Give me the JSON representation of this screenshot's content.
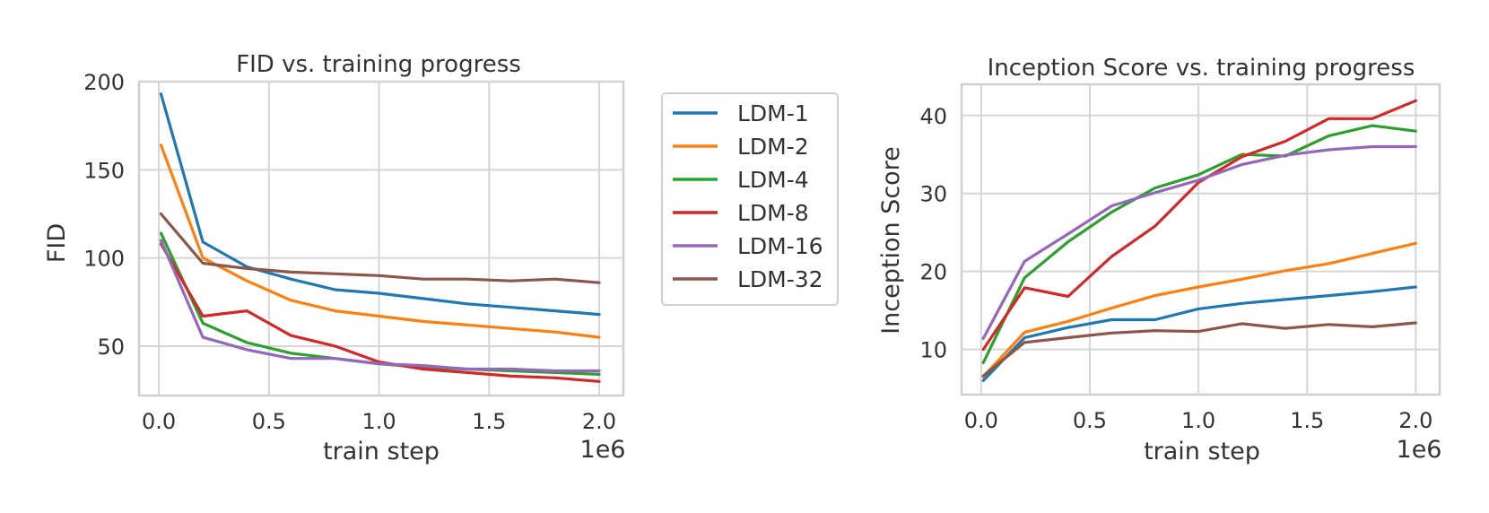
{
  "colors": {
    "LDM-1": "#1f77b4",
    "LDM-2": "#ff7f0e",
    "LDM-4": "#2ca02c",
    "LDM-8": "#d62728",
    "LDM-16": "#9467bd",
    "LDM-32": "#8c564b"
  },
  "legend": {
    "entries": [
      "LDM-1",
      "LDM-2",
      "LDM-4",
      "LDM-8",
      "LDM-16",
      "LDM-32"
    ]
  },
  "chart_data": [
    {
      "type": "line",
      "title": "FID vs. training progress",
      "xlabel": "train step",
      "ylabel": "FID",
      "x_offset_label": "1e6",
      "xlim": [
        -0.09,
        2.11
      ],
      "ylim": [
        22,
        200
      ],
      "xticks": [
        0.0,
        0.5,
        1.0,
        1.5,
        2.0
      ],
      "xtick_labels": [
        "0.0",
        "0.5",
        "1.0",
        "1.5",
        "2.0"
      ],
      "yticks": [
        50,
        100,
        150,
        200
      ],
      "ytick_labels": [
        "50",
        "100",
        "150",
        "200"
      ],
      "grid": true,
      "x": [
        0.01,
        0.2,
        0.4,
        0.6,
        0.8,
        1.0,
        1.2,
        1.4,
        1.6,
        1.8,
        2.0
      ],
      "series": [
        {
          "name": "LDM-1",
          "values": [
            193,
            109,
            95,
            88,
            82,
            80,
            77,
            74,
            72,
            70,
            68
          ]
        },
        {
          "name": "LDM-2",
          "values": [
            164,
            100,
            87,
            76,
            70,
            67,
            64,
            62,
            60,
            58,
            55
          ]
        },
        {
          "name": "LDM-4",
          "values": [
            114,
            63,
            52,
            46,
            43,
            40,
            38,
            37,
            36,
            35,
            34
          ]
        },
        {
          "name": "LDM-8",
          "values": [
            108,
            67,
            70,
            56,
            50,
            41,
            37,
            35,
            33,
            32,
            30
          ]
        },
        {
          "name": "LDM-16",
          "values": [
            110,
            55,
            48,
            43,
            43,
            40,
            39,
            37,
            37,
            36,
            36
          ]
        },
        {
          "name": "LDM-32",
          "values": [
            125,
            97,
            94,
            92,
            91,
            90,
            88,
            88,
            87,
            88,
            86
          ]
        }
      ]
    },
    {
      "type": "line",
      "title": "Inception Score vs. training progress",
      "xlabel": "train step",
      "ylabel": "Inception Score",
      "x_offset_label": "1e6",
      "xlim": [
        -0.09,
        2.11
      ],
      "ylim": [
        4.2,
        44
      ],
      "xticks": [
        0.0,
        0.5,
        1.0,
        1.5,
        2.0
      ],
      "xtick_labels": [
        "0.0",
        "0.5",
        "1.0",
        "1.5",
        "2.0"
      ],
      "yticks": [
        10,
        20,
        30,
        40
      ],
      "ytick_labels": [
        "10",
        "20",
        "30",
        "40"
      ],
      "grid": true,
      "x": [
        0.01,
        0.2,
        0.4,
        0.6,
        0.8,
        1.0,
        1.2,
        1.4,
        1.6,
        1.8,
        2.0
      ],
      "series": [
        {
          "name": "LDM-1",
          "values": [
            6.0,
            11.5,
            12.8,
            13.8,
            13.8,
            15.2,
            15.9,
            16.4,
            16.9,
            17.4,
            18.0
          ]
        },
        {
          "name": "LDM-2",
          "values": [
            6.5,
            12.2,
            13.6,
            15.3,
            16.9,
            18.0,
            19.0,
            20.1,
            21.0,
            22.3,
            23.6
          ]
        },
        {
          "name": "LDM-4",
          "values": [
            8.3,
            19.2,
            23.8,
            27.6,
            30.7,
            32.4,
            35.0,
            34.8,
            37.4,
            38.7,
            38.0
          ]
        },
        {
          "name": "LDM-8",
          "values": [
            10.0,
            17.9,
            16.8,
            21.9,
            25.8,
            31.4,
            34.7,
            36.7,
            39.6,
            39.6,
            41.9
          ]
        },
        {
          "name": "LDM-16",
          "values": [
            11.4,
            21.3,
            24.8,
            28.4,
            30.1,
            31.7,
            33.7,
            34.9,
            35.6,
            36.0,
            36.0
          ]
        },
        {
          "name": "LDM-32",
          "values": [
            6.6,
            10.9,
            11.5,
            12.1,
            12.4,
            12.3,
            13.3,
            12.7,
            13.2,
            12.9,
            13.4
          ]
        }
      ]
    }
  ]
}
